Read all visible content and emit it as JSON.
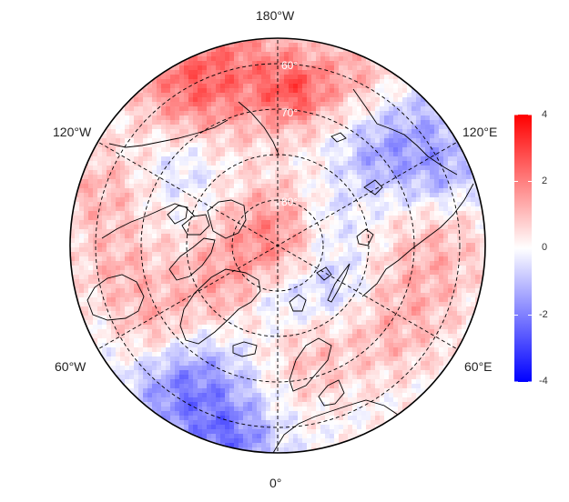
{
  "map": {
    "projection": "north-polar-stereographic",
    "longitude_labels": {
      "top": "180°W",
      "upper_left": "120°W",
      "upper_right": "120°E",
      "lower_left": "60°W",
      "lower_right": "60°E",
      "bottom": "0°"
    },
    "latitude_labels": [
      "60°",
      "70°",
      "80°"
    ]
  },
  "colorbar": {
    "min": -4,
    "max": 4,
    "tick_labels": [
      "4",
      "2",
      "0",
      "-2",
      "-4"
    ],
    "colors": {
      "low": "#0000ff",
      "mid": "#ffffff",
      "high": "#ff0000"
    }
  },
  "land_color": "#000000"
}
